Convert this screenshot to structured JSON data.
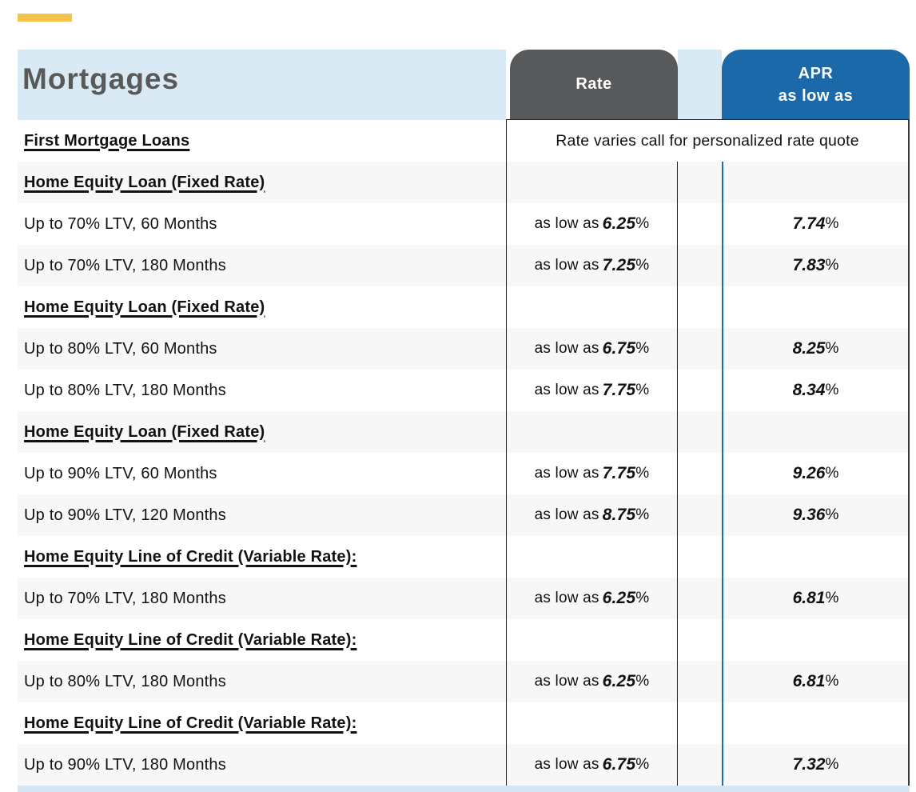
{
  "accent": {
    "color": "#F4C44A"
  },
  "header": {
    "title": "Mortgages",
    "rate_label": "Rate",
    "apr_line1": "APR",
    "apr_line2": "as low as",
    "colors": {
      "band_light_blue": "#D9EAF4",
      "rate_box_gray": "#58595B",
      "apr_box_blue": "#1B69A8",
      "accent_gold": "#F4C44A",
      "alt_row_gray": "#F7F7F7",
      "apr_divider_blue": "#1F6BA9"
    }
  },
  "table": {
    "rate_prefix": "as low as ",
    "percent": "%",
    "rows": [
      {
        "type": "note",
        "name": "First Mortgage Loans",
        "note": "Rate varies call for personalized rate quote"
      },
      {
        "type": "category",
        "name": "Home Equity Loan (Fixed Rate)"
      },
      {
        "type": "item",
        "name": "Up to 70% LTV, 60 Months",
        "rate": "6.25",
        "apr": "7.74"
      },
      {
        "type": "item",
        "name": "Up to 70% LTV, 180 Months",
        "rate": "7.25",
        "apr": "7.83"
      },
      {
        "type": "category",
        "name": "Home Equity Loan (Fixed Rate)"
      },
      {
        "type": "item",
        "name": "Up to 80% LTV, 60 Months",
        "rate": "6.75",
        "apr": "8.25"
      },
      {
        "type": "item",
        "name": "Up to 80% LTV, 180 Months",
        "rate": "7.75",
        "apr": "8.34"
      },
      {
        "type": "category",
        "name": "Home Equity Loan (Fixed Rate)"
      },
      {
        "type": "item",
        "name": "Up to 90% LTV, 60 Months",
        "rate": "7.75",
        "apr": "9.26"
      },
      {
        "type": "item",
        "name": "Up to 90% LTV, 120 Months",
        "rate": "8.75",
        "apr": "9.36"
      },
      {
        "type": "category",
        "name": "Home Equity Line of Credit (Variable Rate):"
      },
      {
        "type": "item",
        "name": "Up to 70% LTV, 180 Months",
        "rate": "6.25",
        "apr": "6.81"
      },
      {
        "type": "category",
        "name": "Home Equity Line of Credit (Variable Rate):"
      },
      {
        "type": "item",
        "name": "Up to 80% LTV, 180 Months",
        "rate": "6.25",
        "apr": "6.81"
      },
      {
        "type": "category",
        "name": "Home Equity Line of Credit (Variable Rate):"
      },
      {
        "type": "item",
        "name": "Up to 90% LTV, 180 Months",
        "rate": "6.75",
        "apr": "7.32"
      }
    ]
  }
}
